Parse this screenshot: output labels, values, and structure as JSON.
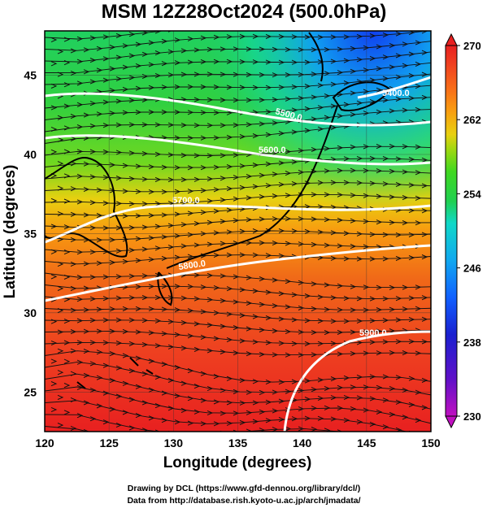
{
  "title": "MSM 12Z28Oct2024 (500.0hPa)",
  "xlabel": "Longitude (degrees)",
  "ylabel": "Latitude  (degrees)",
  "credits": [
    "Drawing by DCL (https://www.gfd-dennou.org/library/dcl/)",
    "Data from http://database.rish.kyoto-u.ac.jp/arch/jmadata/"
  ],
  "map": {
    "lon_range": [
      120,
      150
    ],
    "lat_range": [
      22.5,
      47.8
    ],
    "lon_ticks": [
      "120",
      "125",
      "130",
      "135",
      "140",
      "145",
      "150"
    ],
    "lat_ticks": [
      "25",
      "30",
      "35",
      "40",
      "45"
    ],
    "grid": true,
    "field": "temperature (shaded), streamlines (arrows)",
    "contour_labels": [
      "5400.0",
      "5500.0",
      "5600.0",
      "5700.0",
      "5800.0",
      "5900.0"
    ]
  },
  "colorbar": {
    "range": [
      230,
      270
    ],
    "ticks": [
      "270",
      "262",
      "254",
      "246",
      "238",
      "230"
    ],
    "colors": [
      "#c010c0",
      "#6010c8",
      "#1a20d0",
      "#1060ff",
      "#10a8f0",
      "#10d8c8",
      "#20d050",
      "#40d820",
      "#a0d810",
      "#e8d010",
      "#f8a010",
      "#f87018",
      "#f04020",
      "#e82020"
    ]
  }
}
